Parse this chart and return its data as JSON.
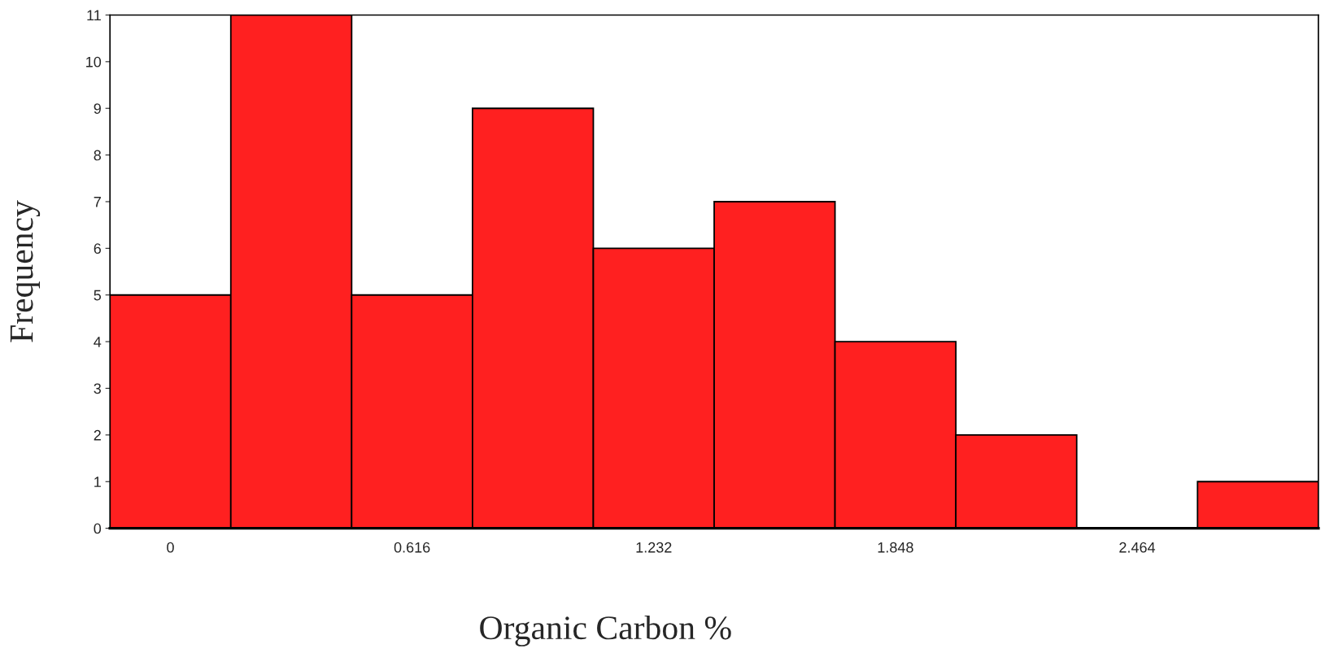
{
  "chart_data": {
    "type": "histogram",
    "xlabel": "Organic Carbon %",
    "ylabel": "Frequency",
    "bins": [
      -0.154,
      0.154,
      0.462,
      0.77,
      1.078,
      1.386,
      1.694,
      2.002,
      2.31,
      2.618,
      2.926
    ],
    "values": [
      5,
      11,
      5,
      9,
      6,
      7,
      4,
      2,
      0,
      1
    ],
    "color": "#ff2020",
    "xlim": [
      -0.154,
      2.926
    ],
    "xticks": [
      0,
      0.616,
      1.232,
      1.848,
      2.464
    ],
    "ylim": [
      0,
      11
    ],
    "yticks": [
      0,
      1,
      2,
      3,
      4,
      5,
      6,
      7,
      8,
      9,
      10,
      11
    ],
    "grid": false
  }
}
